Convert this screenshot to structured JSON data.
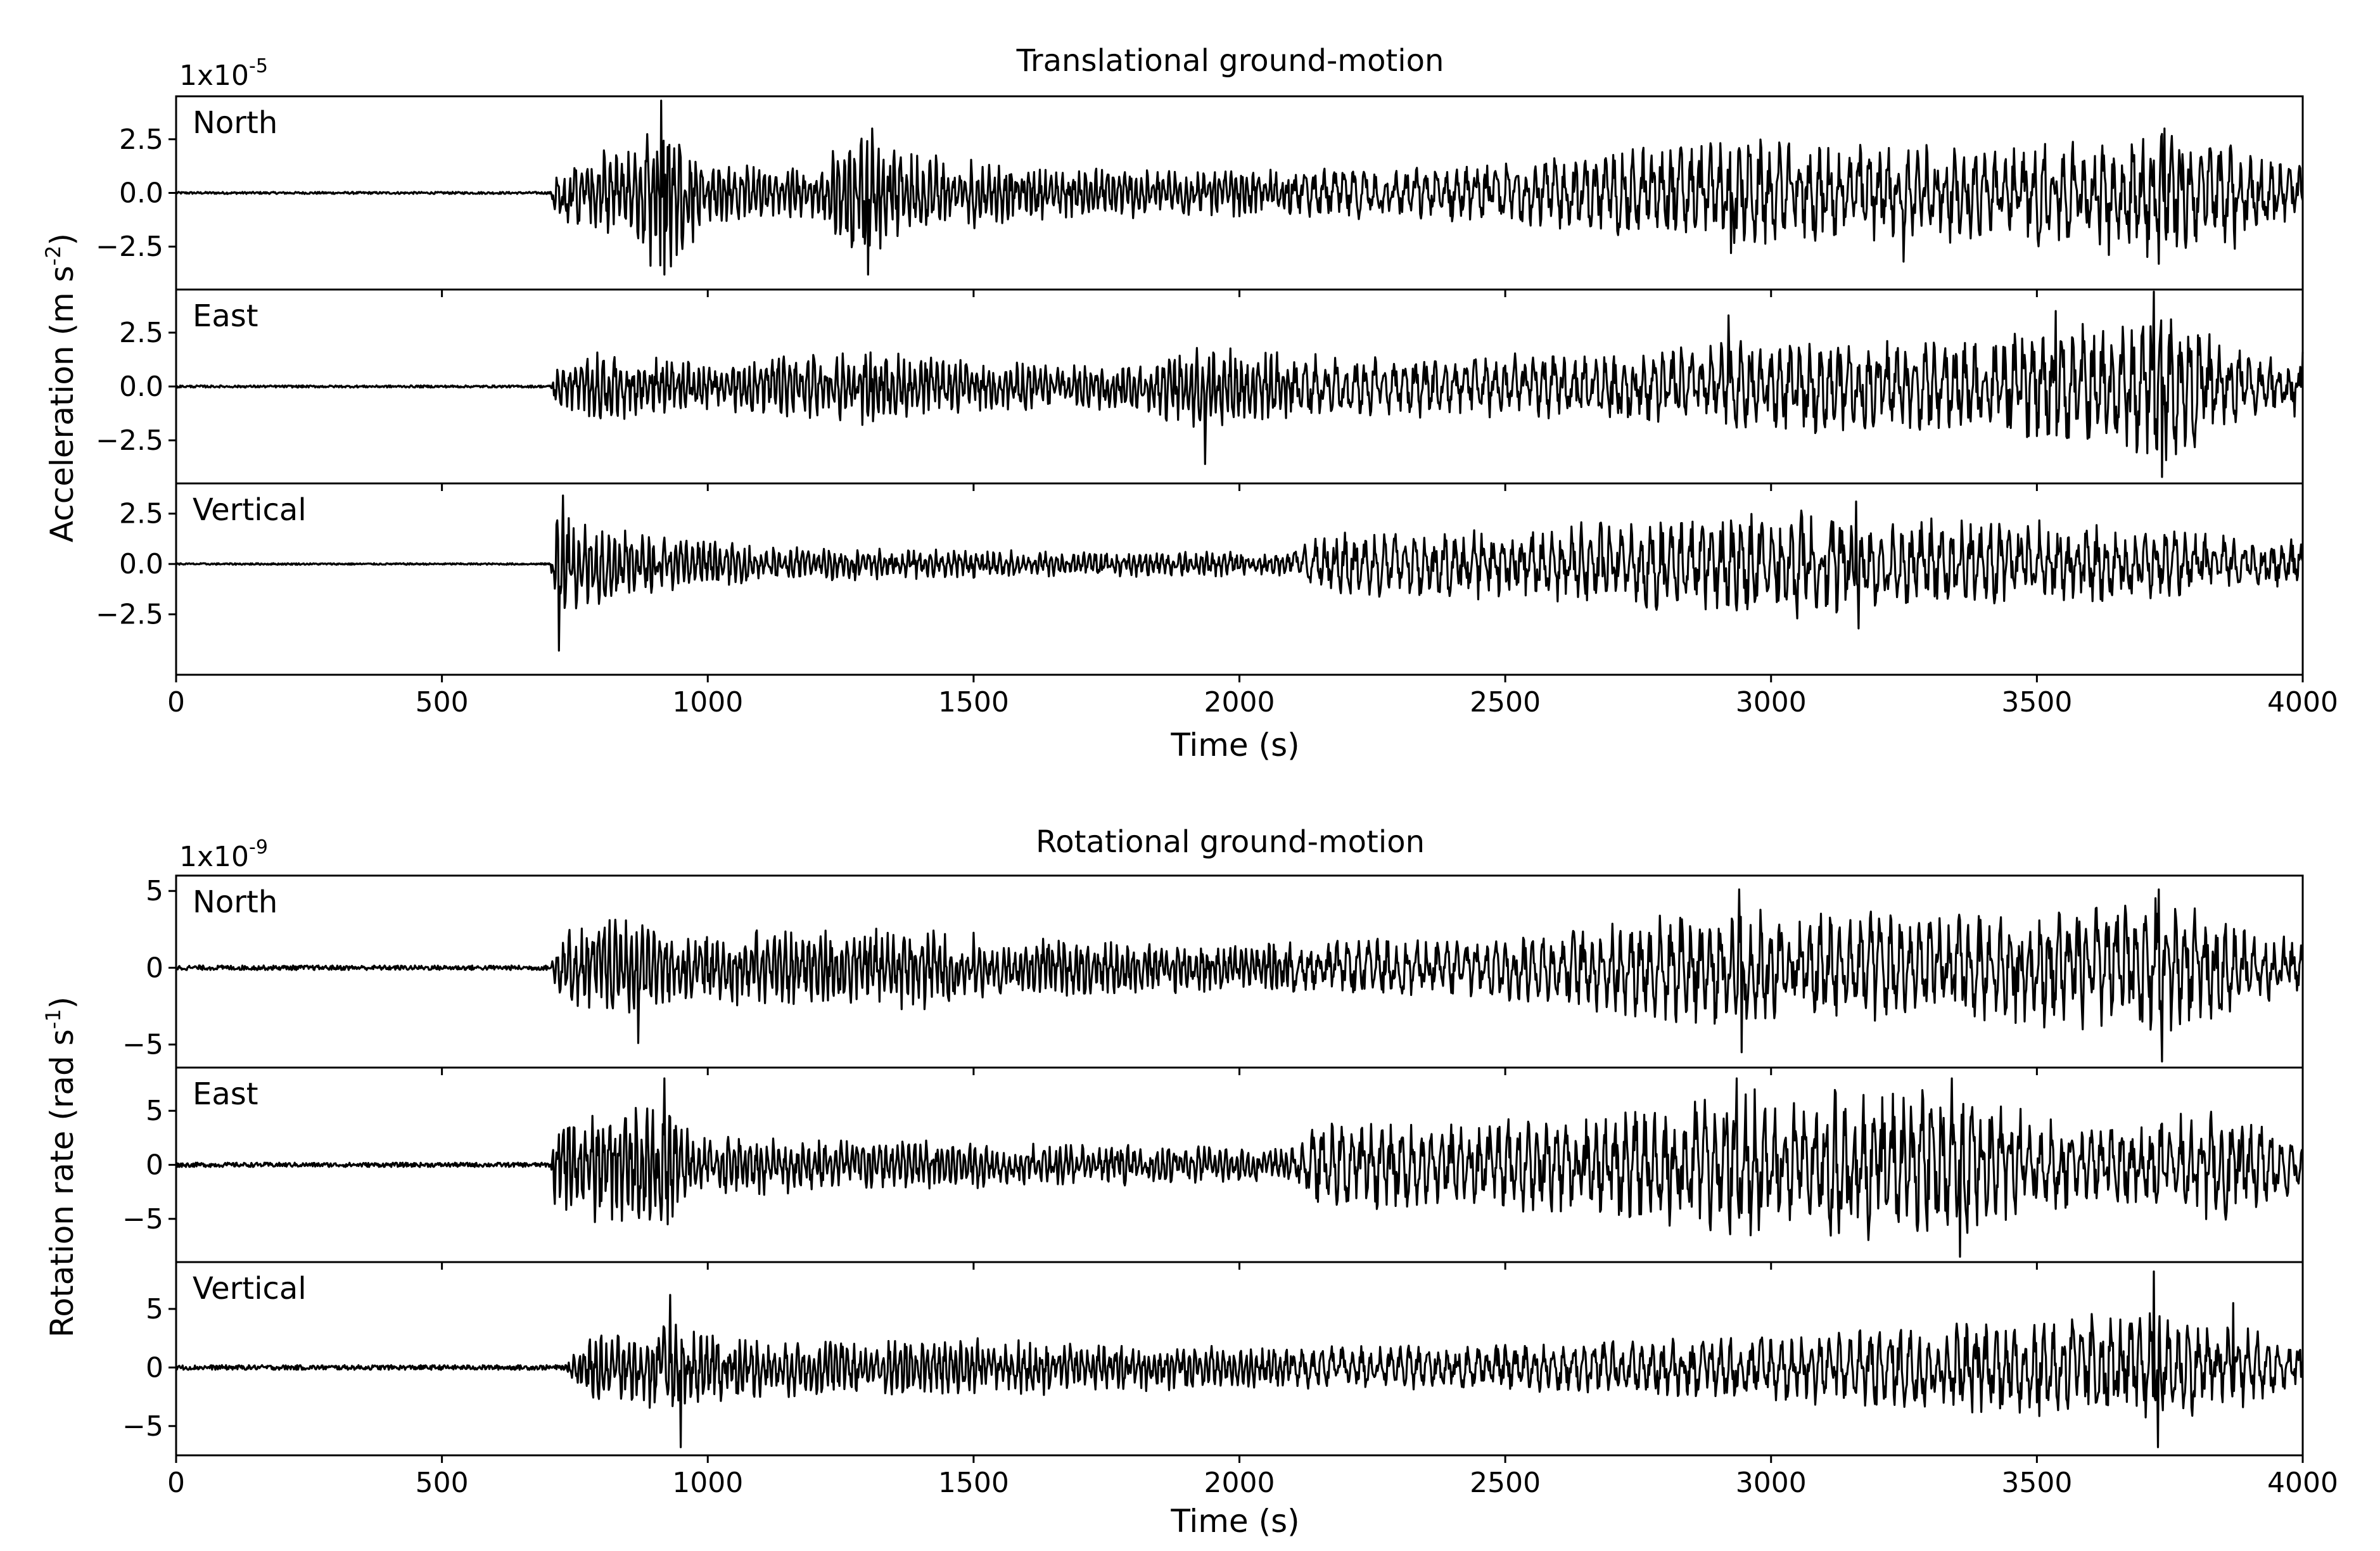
{
  "chart_data": [
    {
      "type": "line",
      "title": "Translational ground-motion",
      "ylabel_main": "Acceleration (m s",
      "ylabel_sup": "-2",
      "multiplier": "1x10",
      "multiplier_exp": "-5",
      "xlabel": "Time (s)",
      "xlim": [
        0,
        4000
      ],
      "x_ticks": [
        0,
        500,
        1000,
        1500,
        2000,
        2500,
        3000,
        3500,
        4000
      ],
      "x_tick_labels": [
        "0",
        "500",
        "1000",
        "1500",
        "2000",
        "2500",
        "3000",
        "3500",
        "4000"
      ],
      "panels": [
        {
          "label": "North",
          "ylim": [
            -4.5,
            4.5
          ],
          "y_ticks": [
            -2.5,
            0,
            2.5
          ],
          "y_tick_labels": [
            "−2.5",
            "0.0",
            "2.5"
          ],
          "onset": 710,
          "secondary_onset": 1290,
          "envelope": [
            [
              0,
              0.05
            ],
            [
              705,
              0.05
            ],
            [
              715,
              1.8
            ],
            [
              850,
              2.2
            ],
            [
              912,
              4.2
            ],
            [
              1000,
              1.5
            ],
            [
              1200,
              1.2
            ],
            [
              1290,
              3.3
            ],
            [
              1350,
              2.2
            ],
            [
              1600,
              1.3
            ],
            [
              2000,
              1.1
            ],
            [
              2200,
              1.2
            ],
            [
              2500,
              1.5
            ],
            [
              2900,
              2.6
            ],
            [
              3400,
              2.3
            ],
            [
              3740,
              3.2
            ],
            [
              3900,
              2.2
            ],
            [
              4000,
              1.2
            ]
          ],
          "peaks": [
            [
              912,
              4.3
            ],
            [
              918,
              -3.8
            ],
            [
              1302,
              -3.8
            ],
            [
              1310,
              3.0
            ],
            [
              2925,
              -2.8
            ],
            [
              3250,
              -3.2
            ],
            [
              3730,
              -3.3
            ],
            [
              3740,
              3.0
            ],
            [
              3872,
              -2.6
            ]
          ]
        },
        {
          "label": "East",
          "ylim": [
            -4.5,
            4.5
          ],
          "y_ticks": [
            -2.5,
            0,
            2.5
          ],
          "y_tick_labels": [
            "−2.5",
            "0.0",
            "2.5"
          ],
          "onset": 710,
          "secondary_onset": 1290,
          "envelope": [
            [
              0,
              0.05
            ],
            [
              705,
              0.05
            ],
            [
              715,
              1.0
            ],
            [
              800,
              1.7
            ],
            [
              1000,
              1.1
            ],
            [
              1290,
              1.8
            ],
            [
              1500,
              1.2
            ],
            [
              1800,
              1.1
            ],
            [
              1900,
              2.0
            ],
            [
              2200,
              1.4
            ],
            [
              2600,
              1.6
            ],
            [
              3000,
              2.2
            ],
            [
              3400,
              2.3
            ],
            [
              3740,
              3.5
            ],
            [
              3900,
              1.8
            ],
            [
              4000,
              1.4
            ]
          ],
          "peaks": [
            [
              1935,
              -3.6
            ],
            [
              2920,
              3.3
            ],
            [
              3720,
              4.4
            ],
            [
              3735,
              -4.2
            ],
            [
              3535,
              3.5
            ],
            [
              4000,
              1.6
            ]
          ]
        },
        {
          "label": "Vertical",
          "ylim": [
            -5.5,
            4.0
          ],
          "y_ticks": [
            -2.5,
            0,
            2.5
          ],
          "y_tick_labels": [
            "−2.5",
            "0.0",
            "2.5"
          ],
          "onset": 710,
          "secondary_onset": 2160,
          "envelope": [
            [
              0,
              0.04
            ],
            [
              705,
              0.04
            ],
            [
              712,
              3.4
            ],
            [
              760,
              2.2
            ],
            [
              900,
              1.5
            ],
            [
              1100,
              0.9
            ],
            [
              1500,
              0.7
            ],
            [
              2100,
              0.6
            ],
            [
              2160,
              1.6
            ],
            [
              2500,
              1.8
            ],
            [
              3000,
              2.8
            ],
            [
              3200,
              2.4
            ],
            [
              3500,
              2.2
            ],
            [
              4000,
              1.2
            ]
          ],
          "peaks": [
            [
              720,
              -4.3
            ],
            [
              728,
              3.4
            ],
            [
              3160,
              3.1
            ],
            [
              3165,
              -3.2
            ],
            [
              3050,
              -2.7
            ]
          ]
        }
      ]
    },
    {
      "type": "line",
      "title": "Rotational ground-motion",
      "ylabel_main": "Rotation rate (rad s",
      "ylabel_sup": "-1",
      "multiplier": "1x10",
      "multiplier_exp": "-9",
      "xlabel": "Time (s)",
      "xlim": [
        0,
        4000
      ],
      "x_ticks": [
        0,
        500,
        1000,
        1500,
        2000,
        2500,
        3000,
        3500,
        4000
      ],
      "x_tick_labels": [
        "0",
        "500",
        "1000",
        "1500",
        "2000",
        "2500",
        "3000",
        "3500",
        "4000"
      ],
      "panels": [
        {
          "label": "North",
          "ylim": [
            -6.5,
            6.0
          ],
          "y_ticks": [
            -5,
            0,
            5
          ],
          "y_tick_labels": [
            "−5",
            "0",
            "5"
          ],
          "onset": 710,
          "secondary_onset": 1290,
          "envelope": [
            [
              0,
              0.15
            ],
            [
              705,
              0.15
            ],
            [
              715,
              2.6
            ],
            [
              820,
              3.2
            ],
            [
              1000,
              2.4
            ],
            [
              1400,
              2.8
            ],
            [
              1600,
              2.0
            ],
            [
              2000,
              1.6
            ],
            [
              2500,
              2.2
            ],
            [
              2900,
              4.0
            ],
            [
              3400,
              3.6
            ],
            [
              3740,
              4.8
            ],
            [
              3900,
              2.4
            ],
            [
              4000,
              2.0
            ]
          ],
          "peaks": [
            [
              870,
              -4.9
            ],
            [
              2940,
              5.1
            ],
            [
              2945,
              -5.5
            ],
            [
              3730,
              5.1
            ],
            [
              3735,
              -6.1
            ]
          ]
        },
        {
          "label": "East",
          "ylim": [
            -9.0,
            9.0
          ],
          "y_ticks": [
            -5,
            0,
            5
          ],
          "y_tick_labels": [
            "−5",
            "0",
            "5"
          ],
          "onset": 710,
          "secondary_onset": 2140,
          "envelope": [
            [
              0,
              0.2
            ],
            [
              705,
              0.2
            ],
            [
              715,
              5.0
            ],
            [
              900,
              6.0
            ],
            [
              1000,
              3.0
            ],
            [
              1500,
              2.2
            ],
            [
              2100,
              1.6
            ],
            [
              2150,
              4.0
            ],
            [
              2600,
              4.5
            ],
            [
              2950,
              7.0
            ],
            [
              3350,
              7.0
            ],
            [
              3600,
              3.5
            ],
            [
              3850,
              5.5
            ],
            [
              4000,
              2.5
            ]
          ],
          "peaks": [
            [
              918,
              8.0
            ],
            [
              925,
              -5.5
            ],
            [
              2935,
              8.0
            ],
            [
              3355,
              -8.5
            ],
            [
              3340,
              8.0
            ]
          ]
        },
        {
          "label": "Vertical",
          "ylim": [
            -7.5,
            9.0
          ],
          "y_ticks": [
            -5,
            0,
            5
          ],
          "y_tick_labels": [
            "−5",
            "0",
            "5"
          ],
          "onset": 740,
          "secondary_onset": 1290,
          "envelope": [
            [
              0,
              0.2
            ],
            [
              735,
              0.2
            ],
            [
              760,
              2.5
            ],
            [
              900,
              4.0
            ],
            [
              1100,
              2.6
            ],
            [
              1500,
              2.6
            ],
            [
              2000,
              1.8
            ],
            [
              2500,
              2.0
            ],
            [
              3000,
              3.0
            ],
            [
              3300,
              4.0
            ],
            [
              3700,
              5.0
            ],
            [
              3900,
              3.5
            ],
            [
              4000,
              2.0
            ]
          ],
          "peaks": [
            [
              950,
              -6.8
            ],
            [
              930,
              6.2
            ],
            [
              3720,
              8.2
            ],
            [
              3728,
              -6.8
            ],
            [
              3870,
              5.5
            ]
          ]
        }
      ]
    }
  ]
}
